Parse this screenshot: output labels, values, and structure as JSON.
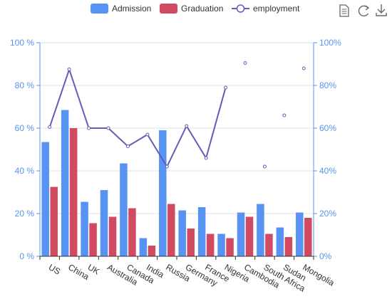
{
  "chart_data": {
    "type": "bar",
    "categories": [
      "US",
      "China",
      "UK",
      "Australia",
      "Canada",
      "India",
      "Russia",
      "Germany",
      "France",
      "Nigeria",
      "Cambodia",
      "South Africa",
      "Sudan",
      "Mongolia"
    ],
    "series": [
      {
        "name": "Admission",
        "type": "bar",
        "axis": "left",
        "color": "#5793f3",
        "values": [
          53.5,
          68.5,
          25.5,
          31,
          43.5,
          8.5,
          59,
          21.5,
          23,
          10.5,
          20.5,
          24.5,
          13.5,
          20.5
        ]
      },
      {
        "name": "Graduation",
        "type": "bar",
        "axis": "left",
        "color": "#d14a61",
        "values": [
          32.5,
          60,
          15.5,
          18.5,
          22.5,
          5,
          24.5,
          13,
          10.5,
          8.5,
          18.5,
          10.5,
          9,
          18
        ]
      },
      {
        "name": "employment",
        "type": "line",
        "axis": "right",
        "color": "#675bba",
        "values": [
          60.5,
          87.5,
          60,
          60,
          51.5,
          57,
          42,
          61,
          46,
          79,
          90.5,
          42,
          66,
          88
        ],
        "connected_count": 10
      }
    ],
    "ylim_left": [
      0,
      100
    ],
    "ylim_right": [
      0,
      100
    ],
    "yticks_left": [
      "0 %",
      "20 %",
      "40 %",
      "60 %",
      "80 %",
      "100 %"
    ],
    "yticks_right": [
      "0%",
      "20%",
      "40%",
      "60%",
      "80%",
      "100%"
    ],
    "grid": true,
    "legend_position": "top"
  },
  "toolbox": {
    "icons": [
      "data-view-icon",
      "restore-icon",
      "save-image-icon"
    ]
  },
  "colors": {
    "left_axis": "#5793f3",
    "right_axis": "#5793f3",
    "grid": "#e0e0e0",
    "axis_line": "#333333"
  }
}
